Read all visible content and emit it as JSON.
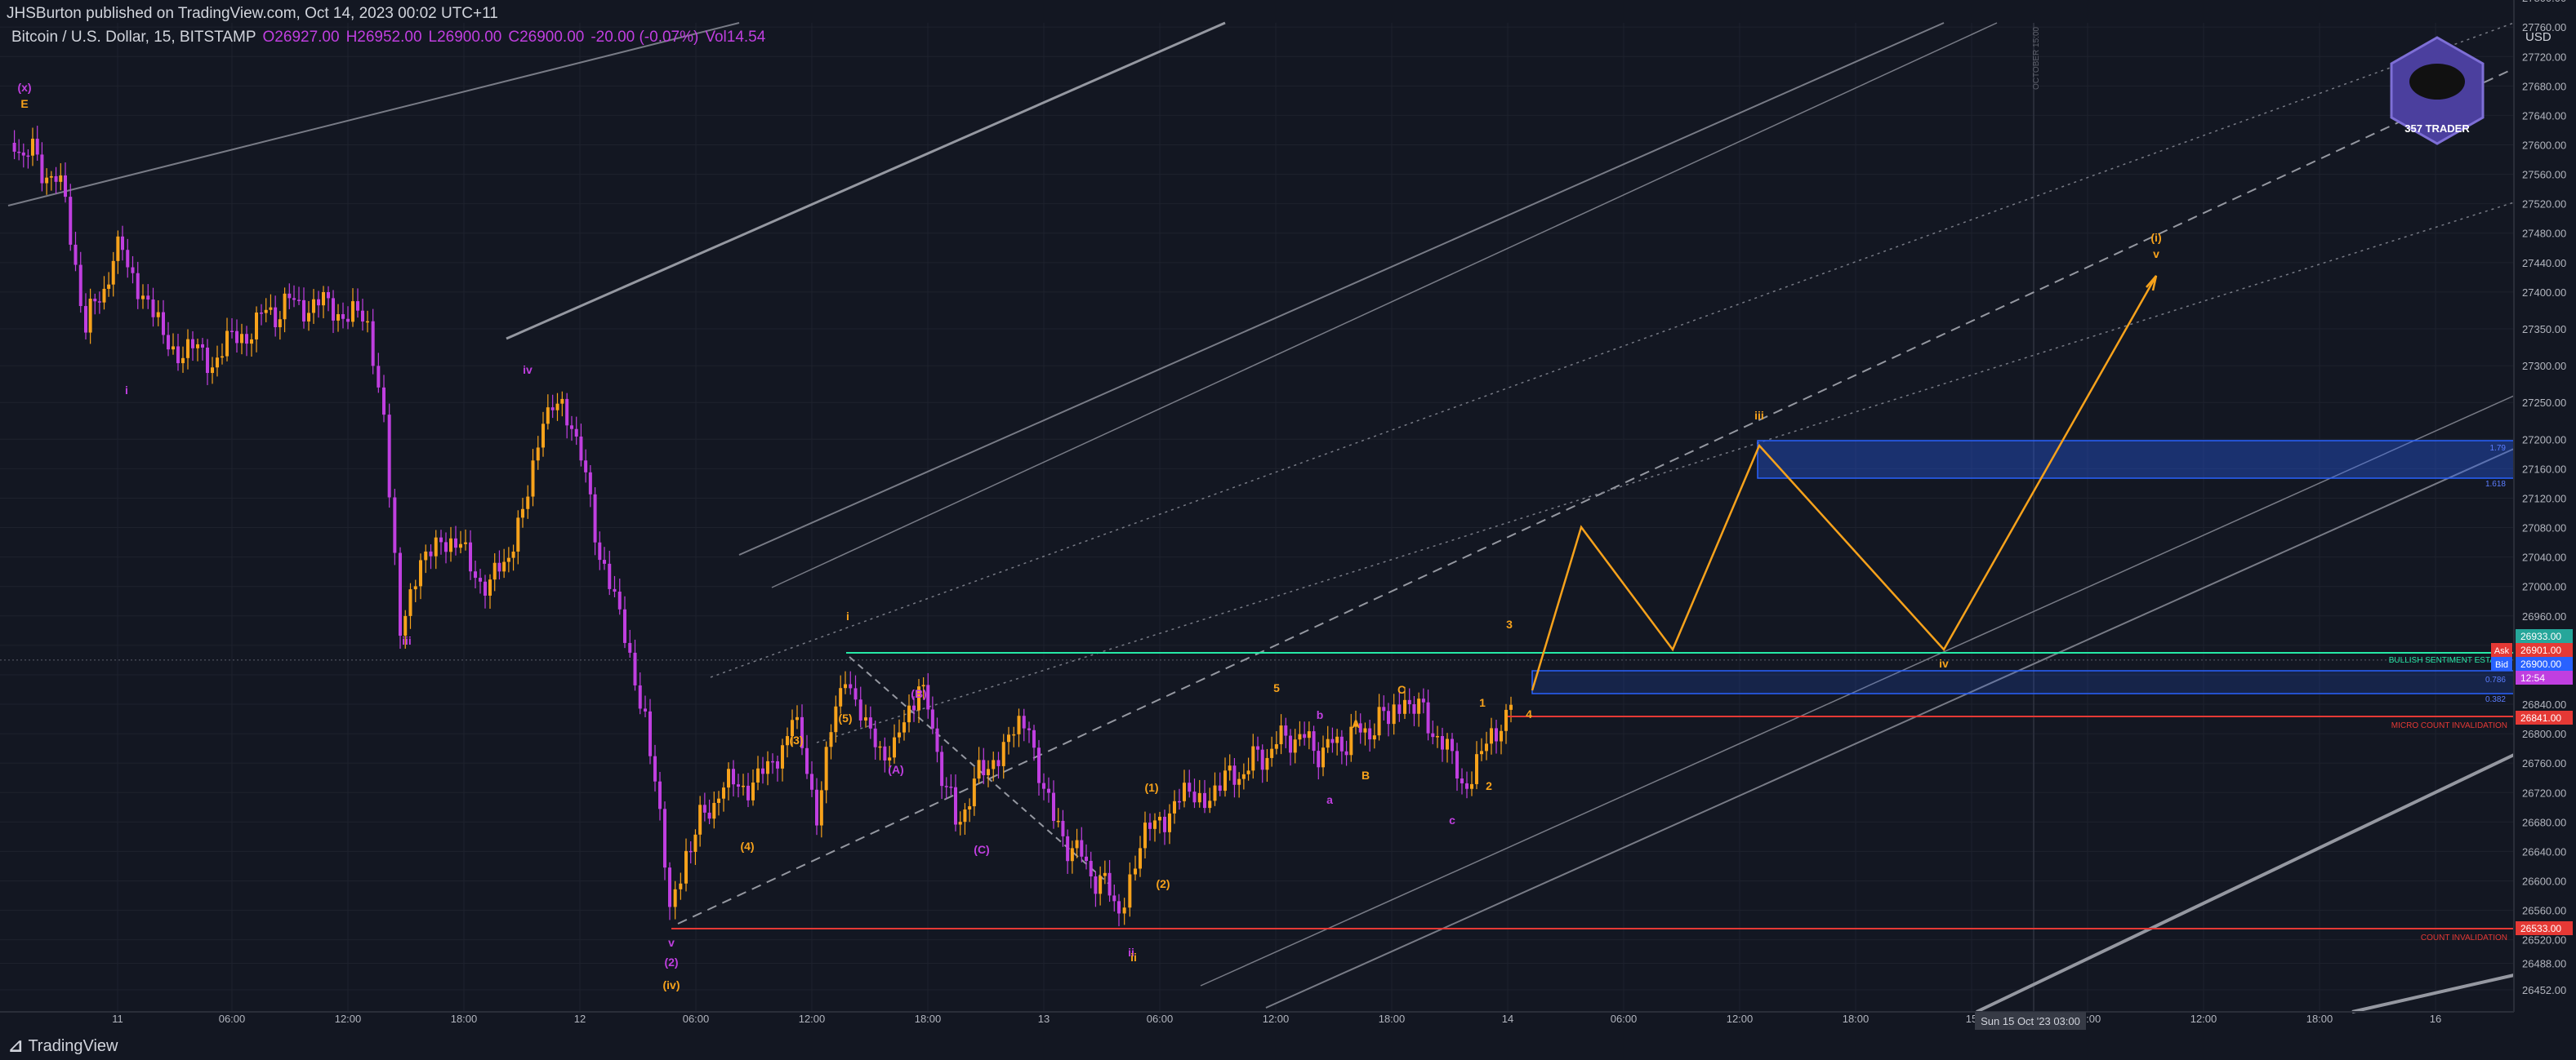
{
  "header": {
    "text": "JHSBurton published on TradingView.com, Oct 14, 2023 00:02 UTC+11"
  },
  "symbol": {
    "name": "Bitcoin / U.S. Dollar, 15, BITSTAMP",
    "open": "O26927.00",
    "high": "H26952.00",
    "low": "L26900.00",
    "close": "C26900.00",
    "change": "-20.00 (-0.07%)",
    "vol": "Vol14.54"
  },
  "footer": {
    "brand": "TradingView"
  },
  "colors": {
    "bg": "#131722",
    "purple": "#c03fe0",
    "orange": "#f7a21b",
    "green": "#26e8a6",
    "red": "#e53935",
    "blue": "#2962ff",
    "grid": "#1e222d"
  },
  "chart_data": {
    "type": "candlestick",
    "currency": "USD",
    "y_ticks": [
      26452,
      26488,
      26520,
      26560,
      26600,
      26640,
      26680,
      26720,
      26760,
      26800,
      26840,
      26880,
      26920,
      26960,
      27000,
      27040,
      27080,
      27120,
      27160,
      27200,
      27250,
      27300,
      27350,
      27400,
      27440,
      27480,
      27520,
      27560,
      27600,
      27640,
      27680,
      27720,
      27760,
      27800,
      27840
    ],
    "x_ticks": [
      "11",
      "06:00",
      "12:00",
      "18:00",
      "12",
      "06:00",
      "12:00",
      "18:00",
      "13",
      "06:00",
      "12:00",
      "18:00",
      "14",
      "06:00",
      "12:00",
      "18:00",
      "15",
      "06:00",
      "12:00",
      "18:00",
      "16"
    ],
    "crosshair_x_label": "Sun 15 Oct '23   03:00",
    "vertical_marker": "OCTOBER 15:00",
    "price_tags": [
      {
        "label": "",
        "value": "26933.00",
        "color": "#26a69a"
      },
      {
        "label": "Ask",
        "value": "26901.00",
        "color": "#e53935"
      },
      {
        "label": "Bid",
        "value": "26900.00",
        "color": "#2962ff"
      },
      {
        "label": "",
        "value": "12:54",
        "color": "#c03fe0"
      },
      {
        "label": "",
        "value": "26841.00",
        "color": "#e53935"
      },
      {
        "label": "",
        "value": "26533.00",
        "color": "#e53935"
      }
    ],
    "levels": [
      {
        "price": 26933,
        "label": "BULLISH SENTIMENT ESTABLI",
        "color": "#26e8a6"
      },
      {
        "price": 26841,
        "label": "MICRO COUNT INVALIDATION",
        "color": "#e53935"
      },
      {
        "price": 26533,
        "label": "COUNT INVALIDATION",
        "color": "#e53935"
      }
    ],
    "fib_labels": [
      "1.79",
      "1.618",
      "0.786",
      "0.382"
    ],
    "projection": [
      {
        "t": "14 00:40",
        "p": 26870
      },
      {
        "t": "14 03:30",
        "p": 27120
      },
      {
        "t": "14 08:00",
        "p": 26920
      },
      {
        "t": "14 12:30",
        "p": 27250
      },
      {
        "t": "14 22:00",
        "p": 26930
      },
      {
        "t": "15 08:00",
        "p": 27500
      }
    ],
    "wave_labels": [
      {
        "text": "(x)",
        "color": "purple"
      },
      {
        "text": "E",
        "color": "orange"
      },
      {
        "text": "i",
        "color": "purple"
      },
      {
        "text": "ii",
        "color": "purple"
      },
      {
        "text": "iii",
        "color": "purple"
      },
      {
        "text": "iv",
        "color": "purple"
      },
      {
        "text": "v",
        "color": "purple"
      },
      {
        "text": "(2)",
        "color": "purple"
      },
      {
        "text": "(iv)",
        "color": "orange"
      },
      {
        "text": "iii",
        "color": "orange"
      },
      {
        "text": "iv",
        "color": "orange"
      },
      {
        "text": "(i)",
        "color": "orange"
      },
      {
        "text": "v",
        "color": "orange"
      },
      {
        "text": "ii",
        "color": "orange"
      },
      {
        "text": "i",
        "color": "orange"
      },
      {
        "text": "(A)",
        "color": "purple"
      },
      {
        "text": "(C)",
        "color": "purple"
      },
      {
        "text": "(B)",
        "color": "purple"
      },
      {
        "text": "(3)",
        "color": "orange"
      },
      {
        "text": "(4)",
        "color": "orange"
      },
      {
        "text": "(5)",
        "color": "orange"
      },
      {
        "text": "(1)",
        "color": "orange"
      },
      {
        "text": "(2)",
        "color": "orange"
      },
      {
        "text": "A",
        "color": "orange"
      },
      {
        "text": "B",
        "color": "orange"
      },
      {
        "text": "C",
        "color": "orange"
      },
      {
        "text": "a",
        "color": "purple"
      },
      {
        "text": "b",
        "color": "purple"
      },
      {
        "text": "c",
        "color": "purple"
      },
      {
        "text": "1",
        "color": "orange"
      },
      {
        "text": "2",
        "color": "orange"
      },
      {
        "text": "3",
        "color": "orange"
      },
      {
        "text": "4",
        "color": "orange"
      },
      {
        "text": "5",
        "color": "orange"
      }
    ],
    "logo_text": "357 TRADER"
  }
}
